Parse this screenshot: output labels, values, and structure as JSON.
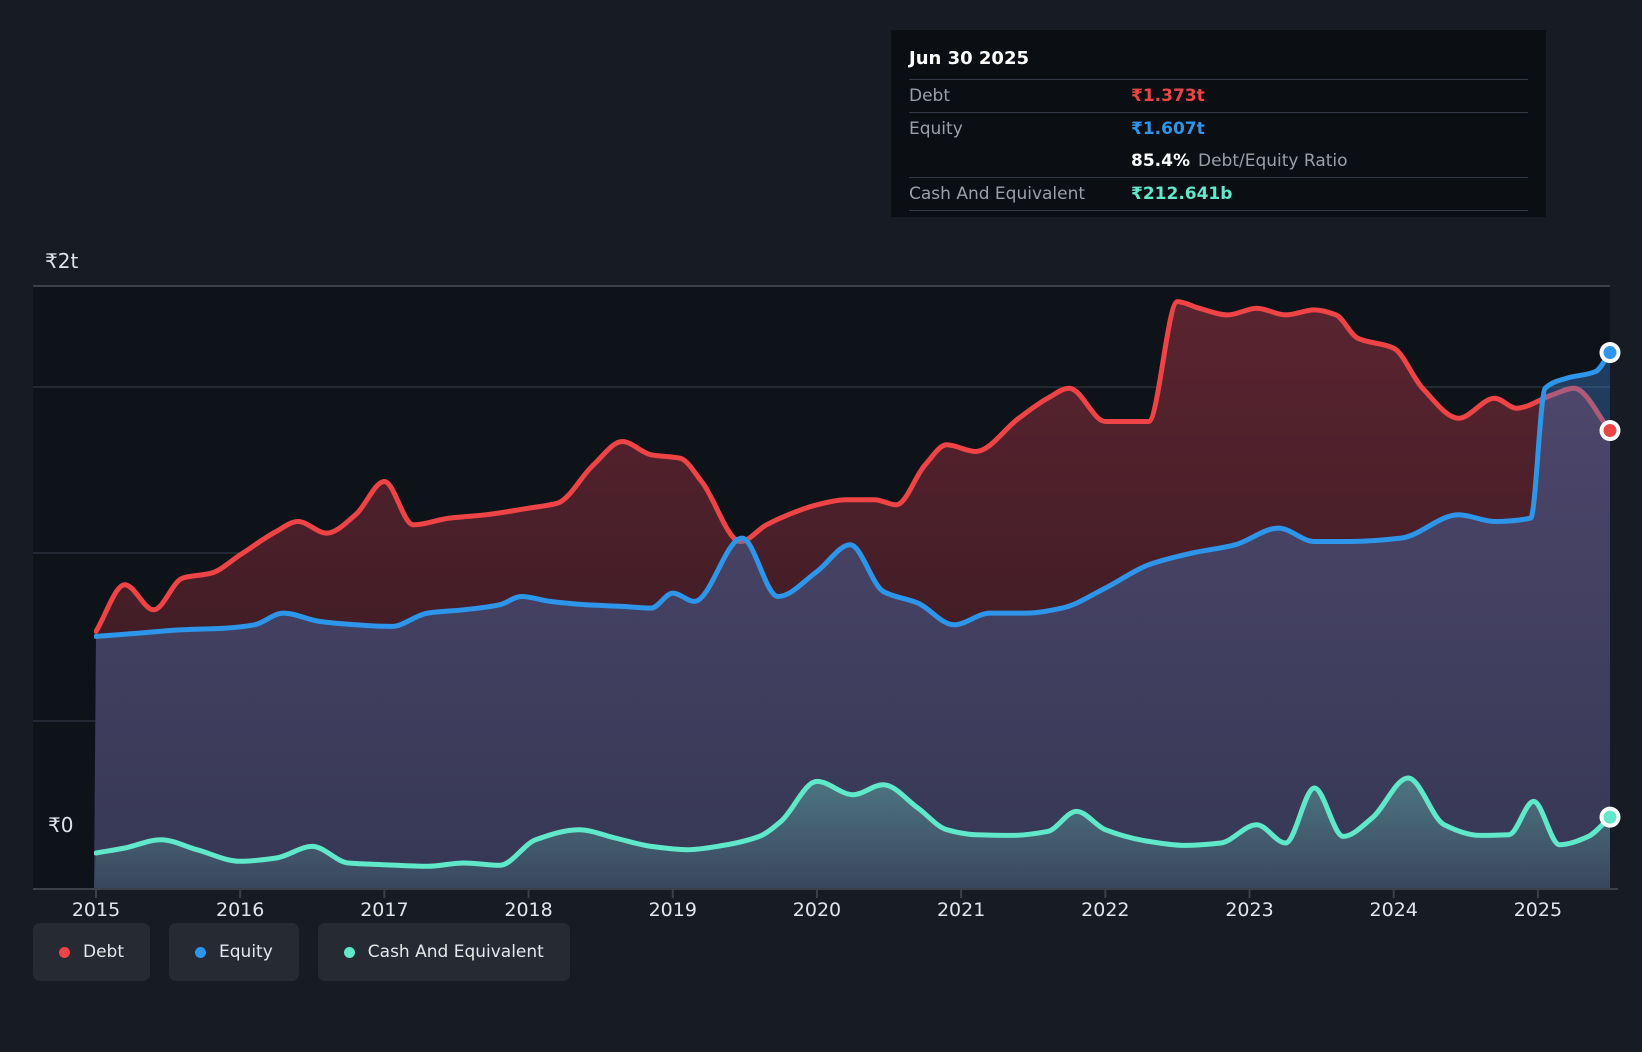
{
  "y_axis": {
    "top_label": "₹2t",
    "bottom_label": "₹0"
  },
  "x_axis": {
    "years": [
      "2015",
      "2016",
      "2017",
      "2018",
      "2019",
      "2020",
      "2021",
      "2022",
      "2023",
      "2024",
      "2025"
    ]
  },
  "colors": {
    "debt": "#ef4446",
    "equity": "#2e96ea",
    "cash": "#5fe8ca",
    "background": "#161b24",
    "plot_background": "#0e1219",
    "gridline_major": "#3a414b",
    "gridline_minor": "#2a303a"
  },
  "tooltip": {
    "date": "Jun 30 2025",
    "rows": {
      "debt": {
        "label": "Debt",
        "value": "₹1.373t"
      },
      "equity": {
        "label": "Equity",
        "value": "₹1.607t"
      },
      "ratio": {
        "value": "85.4%",
        "label": "Debt/Equity Ratio"
      },
      "cash": {
        "label": "Cash And Equivalent",
        "value": "₹212.641b"
      }
    }
  },
  "legend": [
    {
      "id": "debt",
      "label": "Debt"
    },
    {
      "id": "equity",
      "label": "Equity"
    },
    {
      "id": "cash",
      "label": "Cash And Equivalent"
    }
  ],
  "chart_data": {
    "type": "area",
    "x_unit": "decimal_year",
    "x_range": [
      2015.0,
      2025.5
    ],
    "y_unit": "INR trillions",
    "y_range": [
      0,
      2
    ],
    "y_top_label_value": 2,
    "y_gridline_values": [
      0.5,
      1.0,
      1.5
    ],
    "legend_position": "bottom-left",
    "series": [
      {
        "name": "Debt",
        "key": "debt",
        "points": [
          [
            2015.0,
            0.77
          ],
          [
            2015.2,
            0.91
          ],
          [
            2015.4,
            0.835
          ],
          [
            2015.6,
            0.93
          ],
          [
            2015.8,
            0.945
          ],
          [
            2016.0,
            1.0
          ],
          [
            2016.25,
            1.07
          ],
          [
            2016.4,
            1.1
          ],
          [
            2016.6,
            1.065
          ],
          [
            2016.8,
            1.12
          ],
          [
            2017.0,
            1.22
          ],
          [
            2017.2,
            1.09
          ],
          [
            2017.45,
            1.11
          ],
          [
            2017.7,
            1.12
          ],
          [
            2018.0,
            1.14
          ],
          [
            2018.2,
            1.155
          ],
          [
            2018.45,
            1.27
          ],
          [
            2018.65,
            1.34
          ],
          [
            2018.85,
            1.3
          ],
          [
            2019.05,
            1.29
          ],
          [
            2019.2,
            1.22
          ],
          [
            2019.47,
            1.04
          ],
          [
            2019.65,
            1.09
          ],
          [
            2019.8,
            1.12
          ],
          [
            2020.0,
            1.15
          ],
          [
            2020.2,
            1.165
          ],
          [
            2020.4,
            1.165
          ],
          [
            2020.55,
            1.15
          ],
          [
            2020.75,
            1.27
          ],
          [
            2020.9,
            1.33
          ],
          [
            2021.1,
            1.31
          ],
          [
            2021.4,
            1.41
          ],
          [
            2021.6,
            1.47
          ],
          [
            2021.75,
            1.5
          ],
          [
            2022.0,
            1.4
          ],
          [
            2022.3,
            1.4
          ],
          [
            2022.5,
            1.76
          ],
          [
            2022.65,
            1.74
          ],
          [
            2022.85,
            1.72
          ],
          [
            2023.05,
            1.74
          ],
          [
            2023.25,
            1.72
          ],
          [
            2023.45,
            1.735
          ],
          [
            2023.6,
            1.72
          ],
          [
            2023.75,
            1.65
          ],
          [
            2024.0,
            1.62
          ],
          [
            2024.2,
            1.5
          ],
          [
            2024.45,
            1.41
          ],
          [
            2024.7,
            1.47
          ],
          [
            2024.85,
            1.44
          ],
          [
            2025.1,
            1.48
          ],
          [
            2025.25,
            1.5
          ],
          [
            2025.5,
            1.373
          ]
        ]
      },
      {
        "name": "Equity",
        "key": "equity",
        "points": [
          [
            2015.0,
            0.755
          ],
          [
            2015.3,
            0.765
          ],
          [
            2015.6,
            0.775
          ],
          [
            2015.9,
            0.78
          ],
          [
            2016.1,
            0.79
          ],
          [
            2016.3,
            0.825
          ],
          [
            2016.55,
            0.8
          ],
          [
            2016.8,
            0.79
          ],
          [
            2017.05,
            0.785
          ],
          [
            2017.3,
            0.825
          ],
          [
            2017.55,
            0.835
          ],
          [
            2017.8,
            0.85
          ],
          [
            2017.95,
            0.875
          ],
          [
            2018.15,
            0.86
          ],
          [
            2018.4,
            0.85
          ],
          [
            2018.65,
            0.845
          ],
          [
            2018.85,
            0.84
          ],
          [
            2019.0,
            0.885
          ],
          [
            2019.15,
            0.86
          ],
          [
            2019.48,
            1.05
          ],
          [
            2019.73,
            0.875
          ],
          [
            2020.0,
            0.95
          ],
          [
            2020.23,
            1.03
          ],
          [
            2020.46,
            0.89
          ],
          [
            2020.7,
            0.855
          ],
          [
            2020.95,
            0.79
          ],
          [
            2021.2,
            0.825
          ],
          [
            2021.45,
            0.825
          ],
          [
            2021.7,
            0.84
          ],
          [
            2022.0,
            0.9
          ],
          [
            2022.3,
            0.97
          ],
          [
            2022.6,
            1.005
          ],
          [
            2022.9,
            1.03
          ],
          [
            2023.2,
            1.08
          ],
          [
            2023.45,
            1.04
          ],
          [
            2023.7,
            1.04
          ],
          [
            2024.05,
            1.05
          ],
          [
            2024.45,
            1.12
          ],
          [
            2024.7,
            1.1
          ],
          [
            2024.95,
            1.11
          ],
          [
            2025.05,
            1.5
          ],
          [
            2025.2,
            1.53
          ],
          [
            2025.4,
            1.55
          ],
          [
            2025.5,
            1.607
          ]
        ]
      },
      {
        "name": "Cash And Equivalent",
        "key": "cash",
        "points": [
          [
            2015.0,
            0.105
          ],
          [
            2015.2,
            0.12
          ],
          [
            2015.45,
            0.145
          ],
          [
            2015.7,
            0.115
          ],
          [
            2016.0,
            0.08
          ],
          [
            2016.25,
            0.09
          ],
          [
            2016.5,
            0.125
          ],
          [
            2016.75,
            0.075
          ],
          [
            2017.0,
            0.07
          ],
          [
            2017.3,
            0.065
          ],
          [
            2017.55,
            0.075
          ],
          [
            2017.8,
            0.068
          ],
          [
            2018.05,
            0.145
          ],
          [
            2018.35,
            0.175
          ],
          [
            2018.6,
            0.15
          ],
          [
            2018.85,
            0.125
          ],
          [
            2019.1,
            0.115
          ],
          [
            2019.35,
            0.128
          ],
          [
            2019.6,
            0.155
          ],
          [
            2019.75,
            0.2
          ],
          [
            2020.0,
            0.32
          ],
          [
            2020.25,
            0.28
          ],
          [
            2020.46,
            0.31
          ],
          [
            2020.7,
            0.24
          ],
          [
            2020.9,
            0.175
          ],
          [
            2021.1,
            0.16
          ],
          [
            2021.35,
            0.158
          ],
          [
            2021.6,
            0.17
          ],
          [
            2021.8,
            0.23
          ],
          [
            2022.0,
            0.175
          ],
          [
            2022.3,
            0.14
          ],
          [
            2022.55,
            0.128
          ],
          [
            2022.8,
            0.135
          ],
          [
            2023.05,
            0.19
          ],
          [
            2023.25,
            0.135
          ],
          [
            2023.45,
            0.3
          ],
          [
            2023.65,
            0.155
          ],
          [
            2023.85,
            0.21
          ],
          [
            2024.1,
            0.33
          ],
          [
            2024.35,
            0.19
          ],
          [
            2024.6,
            0.158
          ],
          [
            2024.8,
            0.16
          ],
          [
            2024.97,
            0.26
          ],
          [
            2025.15,
            0.13
          ],
          [
            2025.35,
            0.155
          ],
          [
            2025.5,
            0.2126
          ]
        ]
      }
    ],
    "endpoint_values": {
      "debt": 1.373,
      "equity": 1.607,
      "cash": 0.212641
    }
  }
}
